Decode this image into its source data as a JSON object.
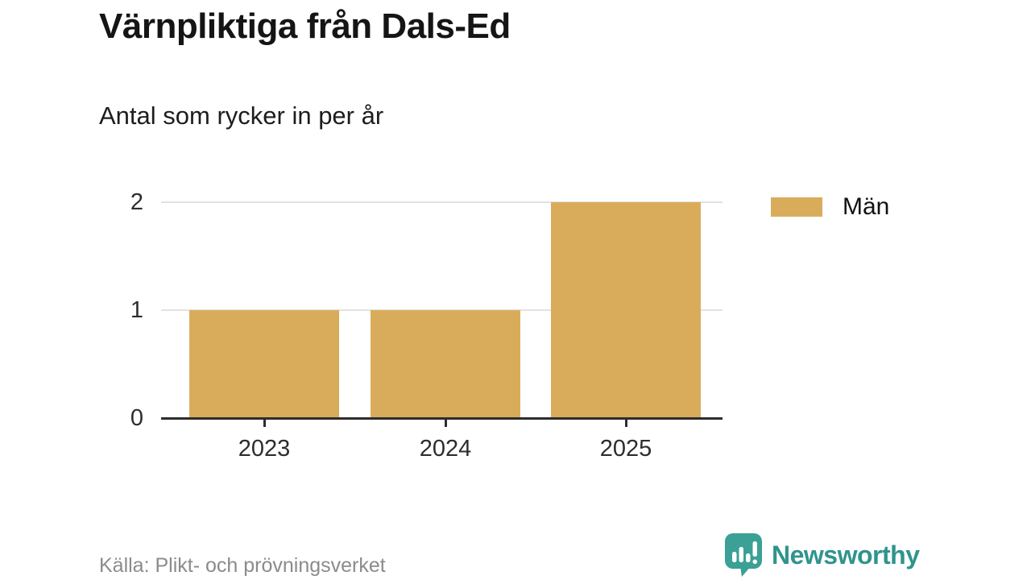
{
  "header": {
    "title": "Värnpliktiga från Dals-Ed",
    "subtitle": "Antal som rycker in per år"
  },
  "chart_data": {
    "type": "bar",
    "title": "Värnpliktiga från Dals-Ed",
    "subtitle": "Antal som rycker in per år",
    "categories": [
      "2023",
      "2024",
      "2025"
    ],
    "series": [
      {
        "name": "Män",
        "values": [
          1,
          1,
          2
        ],
        "color": "#d9ac5c"
      }
    ],
    "xlabel": "",
    "ylabel": "",
    "ylim": [
      0,
      2
    ],
    "yticks": [
      0,
      1,
      2
    ],
    "grid": true,
    "legend_position": "right"
  },
  "legend": {
    "items": [
      {
        "label": "Män",
        "color": "#d9ac5c"
      }
    ]
  },
  "footer": {
    "source": "Källa: Plikt- och prövningsverket",
    "brand": "Newsworthy"
  },
  "colors": {
    "bar": "#d9ac5c",
    "axis": "#2d2d2d",
    "grid": "#e2e2e2",
    "title_text": "#151515",
    "muted_text": "#8b8b8b",
    "brand_teal": "#3ba096",
    "brand_text_teal": "#2f948d"
  }
}
